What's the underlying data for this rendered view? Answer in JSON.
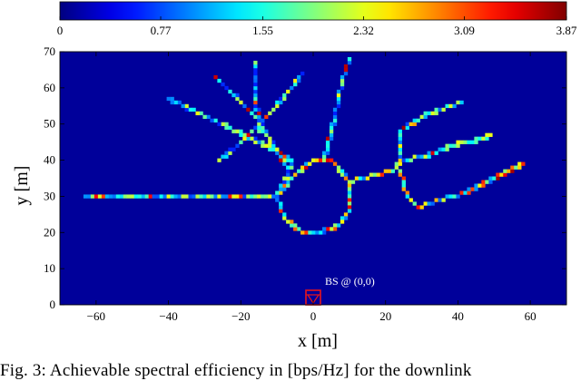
{
  "chart_data": {
    "type": "heatmap",
    "xlabel": "x [m]",
    "ylabel": "y [m]",
    "xlim": [
      -70,
      70
    ],
    "ylim": [
      0,
      70
    ],
    "xticks": [
      "−60",
      "−40",
      "−20",
      "0",
      "20",
      "40",
      "60"
    ],
    "xtick_values": [
      -60,
      -40,
      -20,
      0,
      20,
      40,
      60
    ],
    "yticks": [
      "0",
      "10",
      "20",
      "30",
      "40",
      "50",
      "60",
      "70"
    ],
    "ytick_values": [
      0,
      10,
      20,
      30,
      40,
      50,
      60,
      70
    ],
    "colorbar": {
      "min": 0,
      "max": 3.87,
      "ticks": [
        "0",
        "0.77",
        "1.55",
        "2.32",
        "3.09",
        "3.87"
      ],
      "tick_values": [
        0,
        0.77,
        1.55,
        2.32,
        3.09,
        3.87
      ],
      "colormap": "jet"
    },
    "background_value": 0.1,
    "cell_size_m": 1,
    "annotation": {
      "text": "BS @ (0,0)",
      "x": 0,
      "y": 0
    },
    "paths": [
      {
        "points": [
          [
            -63,
            30
          ],
          [
            -10,
            30
          ]
        ],
        "level": 1.6,
        "var": 0.9
      },
      {
        "points": [
          [
            -10,
            30
          ],
          [
            -5,
            36
          ],
          [
            0,
            40
          ],
          [
            5,
            40
          ],
          [
            10,
            34
          ],
          [
            10,
            26
          ],
          [
            7,
            22
          ],
          [
            2,
            20
          ],
          [
            -3,
            20
          ],
          [
            -8,
            24
          ],
          [
            -10,
            30
          ]
        ],
        "level": 2.0,
        "var": 1.3
      },
      {
        "points": [
          [
            -10,
            30
          ],
          [
            -7,
            36
          ],
          [
            -6,
            40
          ],
          [
            -15,
            45
          ],
          [
            -40,
            57
          ]
        ],
        "level": 1.5,
        "var": 1.0
      },
      {
        "points": [
          [
            -7,
            38
          ],
          [
            -16,
            52
          ],
          [
            -27,
            63
          ]
        ],
        "level": 1.4,
        "var": 1.0
      },
      {
        "points": [
          [
            -26,
            40
          ],
          [
            -20,
            45
          ],
          [
            -11,
            54
          ],
          [
            -6,
            60
          ],
          [
            -3,
            64
          ]
        ],
        "level": 1.5,
        "var": 1.0
      },
      {
        "points": [
          [
            -15,
            48
          ],
          [
            -16,
            60
          ],
          [
            -16,
            67
          ]
        ],
        "level": 1.3,
        "var": 0.9
      },
      {
        "points": [
          [
            3,
            40
          ],
          [
            6,
            52
          ],
          [
            8,
            62
          ],
          [
            10,
            68
          ]
        ],
        "level": 1.4,
        "var": 1.0
      },
      {
        "points": [
          [
            10,
            34
          ],
          [
            17,
            36
          ],
          [
            22,
            37
          ],
          [
            24,
            40
          ],
          [
            24,
            48
          ],
          [
            30,
            52
          ],
          [
            41,
            56
          ]
        ],
        "level": 1.8,
        "var": 1.2
      },
      {
        "points": [
          [
            24,
            40
          ],
          [
            31,
            41
          ],
          [
            38,
            44
          ],
          [
            47,
            46
          ],
          [
            49,
            47
          ]
        ],
        "level": 1.4,
        "var": 1.0
      },
      {
        "points": [
          [
            24,
            37
          ],
          [
            26,
            30
          ],
          [
            29,
            27
          ],
          [
            35,
            29
          ],
          [
            42,
            31
          ],
          [
            48,
            34
          ],
          [
            58,
            39
          ]
        ],
        "level": 2.1,
        "var": 1.3
      }
    ]
  },
  "caption": {
    "text": "Fig. 3: Achievable spectral efficiency in [bps/Hz] for the downlink"
  }
}
